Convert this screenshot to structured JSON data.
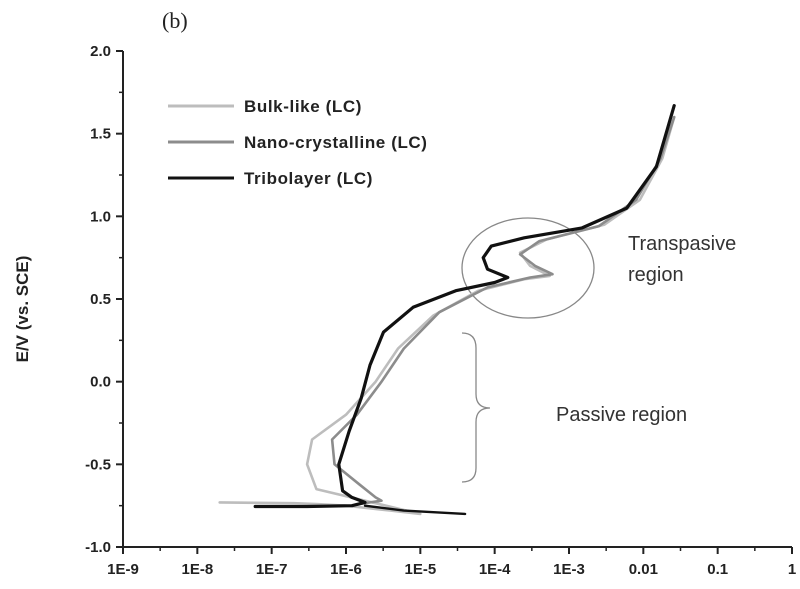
{
  "chart_data": {
    "type": "line",
    "panel_label": "(b)",
    "xscale": "log",
    "xlim": [
      1e-09,
      1
    ],
    "ylim": [
      -1.0,
      2.0
    ],
    "ylabel": "E/V (vs. SCE)",
    "xlabel": "",
    "x_ticks": [
      {
        "value": 1e-09,
        "label": "1E-9"
      },
      {
        "value": 1e-08,
        "label": "1E-8"
      },
      {
        "value": 1e-07,
        "label": "1E-7"
      },
      {
        "value": 1e-06,
        "label": "1E-6"
      },
      {
        "value": 1e-05,
        "label": "1E-5"
      },
      {
        "value": 0.0001,
        "label": "1E-4"
      },
      {
        "value": 0.001,
        "label": "1E-3"
      },
      {
        "value": 0.01,
        "label": "0.01"
      },
      {
        "value": 0.1,
        "label": "0.1"
      },
      {
        "value": 1,
        "label": "1"
      }
    ],
    "y_ticks": [
      {
        "value": 2.0,
        "label": "2.0"
      },
      {
        "value": 1.5,
        "label": "1.5"
      },
      {
        "value": 1.0,
        "label": "1.0"
      },
      {
        "value": 0.5,
        "label": "0.5"
      },
      {
        "value": 0.0,
        "label": "0.0"
      },
      {
        "value": -0.5,
        "label": "-0.5"
      },
      {
        "value": -1.0,
        "label": "-1.0"
      }
    ],
    "grid": false,
    "legend_position": "top-left",
    "series": [
      {
        "name": "Bulk-like (LC)",
        "color": "#bdbdbd",
        "points": [
          [
            2e-08,
            -0.73
          ],
          [
            2e-07,
            -0.735
          ],
          [
            4e-07,
            -0.74
          ],
          [
            1e-06,
            -0.75
          ],
          [
            4e-06,
            -0.78
          ],
          [
            1e-05,
            -0.8
          ],
          [
            4e-07,
            -0.65
          ],
          [
            3e-07,
            -0.5
          ],
          [
            3.5e-07,
            -0.35
          ],
          [
            1e-06,
            -0.2
          ],
          [
            2.5e-06,
            0.0
          ],
          [
            5e-06,
            0.2
          ],
          [
            1.5e-05,
            0.4
          ],
          [
            6e-05,
            0.55
          ],
          [
            0.00025,
            0.62
          ],
          [
            0.00055,
            0.64
          ],
          [
            0.0003,
            0.7
          ],
          [
            0.00022,
            0.78
          ],
          [
            0.0005,
            0.86
          ],
          [
            0.003,
            0.95
          ],
          [
            0.009,
            1.1
          ],
          [
            0.018,
            1.35
          ],
          [
            0.026,
            1.6
          ]
        ]
      },
      {
        "name": "Nano-crystalline (LC)",
        "color": "#8c8c8c",
        "points": [
          [
            1.5e-06,
            -0.74
          ],
          [
            3e-06,
            -0.72
          ],
          [
            2.5e-06,
            -0.7
          ],
          [
            1.5e-06,
            -0.62
          ],
          [
            7e-07,
            -0.5
          ],
          [
            6.5e-07,
            -0.35
          ],
          [
            1.4e-06,
            -0.2
          ],
          [
            3e-06,
            0.0
          ],
          [
            6e-06,
            0.2
          ],
          [
            1.8e-05,
            0.42
          ],
          [
            8e-05,
            0.57
          ],
          [
            0.0003,
            0.63
          ],
          [
            0.0006,
            0.65
          ],
          [
            0.00035,
            0.7
          ],
          [
            0.00022,
            0.77
          ],
          [
            0.0004,
            0.85
          ],
          [
            0.0025,
            0.94
          ],
          [
            0.008,
            1.1
          ],
          [
            0.017,
            1.35
          ],
          [
            0.026,
            1.6
          ]
        ]
      },
      {
        "name": "Tribolayer (LC)",
        "color": "#111111",
        "points": [
          [
            6e-08,
            -0.755
          ],
          [
            3e-07,
            -0.755
          ],
          [
            1.2e-06,
            -0.75
          ],
          [
            1.8e-06,
            -0.73
          ],
          [
            1.2e-06,
            -0.7
          ],
          [
            9e-07,
            -0.66
          ],
          [
            8e-07,
            -0.5
          ],
          [
            1.1e-06,
            -0.3
          ],
          [
            1.6e-06,
            -0.1
          ],
          [
            2.1e-06,
            0.1
          ],
          [
            3.2e-06,
            0.3
          ],
          [
            8e-06,
            0.45
          ],
          [
            3e-05,
            0.55
          ],
          [
            0.0001,
            0.6
          ],
          [
            0.00015,
            0.63
          ],
          [
            8e-05,
            0.68
          ],
          [
            7e-05,
            0.75
          ],
          [
            9e-05,
            0.82
          ],
          [
            0.00025,
            0.87
          ],
          [
            0.0015,
            0.93
          ],
          [
            0.006,
            1.05
          ],
          [
            0.015,
            1.3
          ],
          [
            0.026,
            1.67
          ]
        ]
      },
      {
        "name": "",
        "color": "#111111",
        "points": [
          [
            1.8e-06,
            -0.75
          ],
          [
            6e-06,
            -0.78
          ],
          [
            4e-05,
            -0.8
          ]
        ]
      }
    ],
    "legend": [
      {
        "label": "Bulk-like (LC)",
        "color": "#bdbdbd"
      },
      {
        "label": "Nano-crystalline (LC)",
        "color": "#8c8c8c"
      },
      {
        "label": "Tribolayer (LC)",
        "color": "#111111"
      }
    ],
    "annotations": [
      {
        "text_lines": [
          "Transpasive",
          "region"
        ]
      },
      {
        "text_lines": [
          "Passive region"
        ]
      }
    ]
  }
}
